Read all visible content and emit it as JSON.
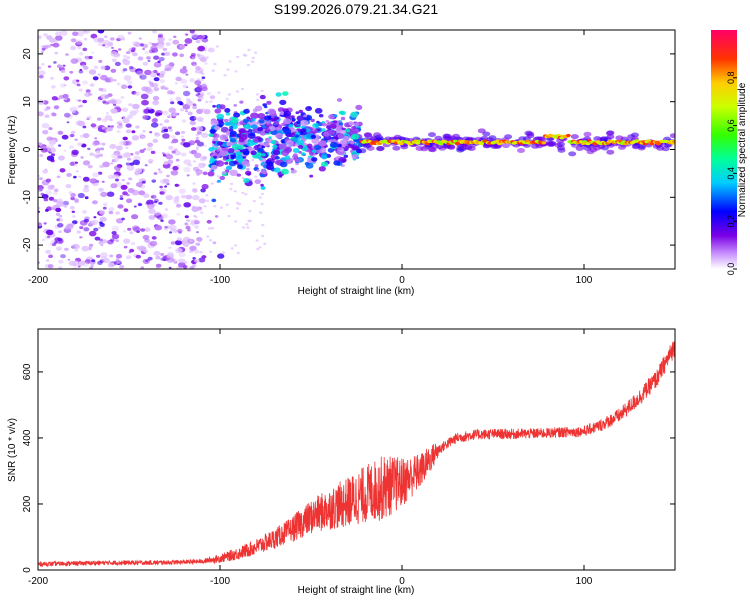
{
  "title": "S199.2026.079.21.34.G21",
  "chart_data": [
    {
      "type": "heatmap",
      "name": "spectrogram",
      "xlabel": "Height of straight line (km)",
      "ylabel": "Frequency (Hz)",
      "xlim": [
        -200,
        150
      ],
      "ylim": [
        -25,
        25
      ],
      "xticks": [
        -200,
        -100,
        0,
        100
      ],
      "yticks": [
        -20,
        -10,
        0,
        10,
        20
      ],
      "colorbar": {
        "label": "Normalized spectral amplitude",
        "range": [
          0,
          1
        ],
        "ticks": [
          "0.0",
          "0.2",
          "0.4",
          "0.6",
          "0.8"
        ]
      },
      "features": [
        {
          "x_range": [
            -200,
            -110
          ],
          "description": "diffuse low-amplitude noise over full frequency range"
        },
        {
          "x_range": [
            -105,
            -25
          ],
          "freq_center": 0,
          "freq_spread": 8,
          "description": "scattered medium-amplitude blobs"
        },
        {
          "x_range": [
            -22,
            150
          ],
          "freq_center": 1.5,
          "description": "coherent high-amplitude narrow line"
        }
      ]
    },
    {
      "type": "line",
      "name": "snr",
      "xlabel": "Height of straight line (km)",
      "ylabel": "SNR (10 * v/v)",
      "xlim": [
        -200,
        150
      ],
      "ylim": [
        0,
        730
      ],
      "xticks": [
        -200,
        -100,
        0,
        100
      ],
      "yticks": [
        0,
        200,
        400,
        600
      ],
      "color": "#ee3333",
      "x": [
        -200,
        -180,
        -160,
        -140,
        -120,
        -110,
        -100,
        -90,
        -80,
        -70,
        -60,
        -50,
        -40,
        -30,
        -20,
        -10,
        0,
        10,
        20,
        30,
        40,
        50,
        60,
        70,
        80,
        90,
        100,
        110,
        120,
        130,
        140,
        150
      ],
      "values": [
        18,
        20,
        22,
        22,
        24,
        26,
        35,
        50,
        70,
        95,
        125,
        160,
        185,
        205,
        230,
        250,
        265,
        300,
        365,
        400,
        410,
        412,
        412,
        413,
        415,
        418,
        420,
        440,
        470,
        520,
        580,
        680
      ]
    }
  ]
}
